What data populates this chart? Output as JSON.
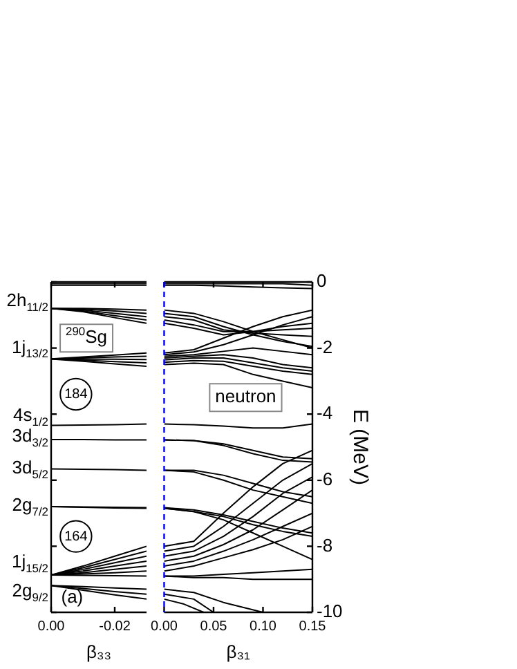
{
  "chart_data": [
    {
      "type": "line",
      "xlabel": "β₃₃",
      "color": "#000000",
      "x": [
        0,
        -0.01,
        -0.02,
        -0.03
      ],
      "xlim": [
        0,
        -0.03
      ],
      "xticks": [
        {
          "value": 0,
          "label": "0.00"
        },
        {
          "value": -0.02,
          "label": "-0.02"
        }
      ],
      "ylim": [
        -10,
        0
      ],
      "yticks": [
        0,
        -2,
        -4,
        -6,
        -8,
        -10
      ],
      "tick_labels": "x",
      "grid": false,
      "legend": false,
      "marker": "none",
      "line_style": "solid",
      "series": [
        {
          "values": [
            -0.05,
            -0.05,
            -0.05,
            -0.05
          ]
        },
        {
          "values": [
            -0.1,
            -0.1,
            -0.1,
            -0.1
          ]
        },
        {
          "values": [
            -0.8,
            -0.8,
            -0.82,
            -0.85
          ]
        },
        {
          "values": [
            -0.8,
            -0.82,
            -0.88,
            -0.95
          ]
        },
        {
          "values": [
            -0.8,
            -0.85,
            -0.95,
            -1.05
          ]
        },
        {
          "values": [
            -0.8,
            -0.88,
            -1.02,
            -1.15
          ]
        },
        {
          "values": [
            -0.8,
            -0.9,
            -1.08,
            -1.25
          ]
        },
        {
          "values": [
            -2.33,
            -2.27,
            -2.21,
            -2.15
          ]
        },
        {
          "values": [
            -2.33,
            -2.3,
            -2.27,
            -2.25
          ]
        },
        {
          "values": [
            -2.33,
            -2.34,
            -2.34,
            -2.35
          ]
        },
        {
          "values": [
            -2.33,
            -2.37,
            -2.41,
            -2.45
          ]
        },
        {
          "values": [
            -2.33,
            -2.4,
            -2.48,
            -2.55
          ]
        },
        {
          "values": [
            -4.34,
            -4.33,
            -4.32,
            -4.3
          ]
        },
        {
          "values": [
            -4.77,
            -4.77,
            -4.78,
            -4.78
          ]
        },
        {
          "values": [
            -5.66,
            -5.67,
            -5.68,
            -5.7
          ]
        },
        {
          "values": [
            -6.8,
            -6.81,
            -6.82,
            -6.83
          ]
        },
        {
          "values": [
            -6.8,
            -6.82,
            -6.84,
            -6.85
          ]
        },
        {
          "values": [
            -8.87,
            -8.6,
            -8.3,
            -8.0
          ]
        },
        {
          "values": [
            -8.87,
            -8.65,
            -8.4,
            -8.15
          ]
        },
        {
          "values": [
            -8.87,
            -8.7,
            -8.5,
            -8.3
          ]
        },
        {
          "values": [
            -8.87,
            -8.75,
            -8.6,
            -8.45
          ]
        },
        {
          "values": [
            -8.87,
            -8.8,
            -8.7,
            -8.6
          ]
        },
        {
          "values": [
            -8.87,
            -8.84,
            -8.8,
            -8.75
          ]
        },
        {
          "values": [
            -8.87,
            -8.88,
            -8.89,
            -8.9
          ]
        },
        {
          "values": [
            -9.19,
            -9.22,
            -9.26,
            -9.3
          ]
        },
        {
          "values": [
            -9.19,
            -9.28,
            -9.37,
            -9.45
          ]
        },
        {
          "values": [
            -9.19,
            -9.33,
            -9.47,
            -9.6
          ]
        }
      ],
      "annotations": [
        "2h$_{11/2}$",
        "1j$_{13/2}$",
        "4s$_{1/2}$",
        "3d$_{3/2}$",
        "3d$_{5/2}$",
        "2g$_{7/2}$",
        "1j$_{15/2}$",
        "2g$_{9/2}$",
        "$^{290}$Sg",
        "184",
        "164",
        "(a)"
      ]
    },
    {
      "type": "line",
      "xlabel": "β₃₁",
      "ylabel": "E (MeV)",
      "color": "#000000",
      "x": [
        0,
        0.03,
        0.06,
        0.09,
        0.12,
        0.15
      ],
      "xlim": [
        0,
        0.15
      ],
      "xticks": [
        {
          "value": 0,
          "label": "0.00"
        },
        {
          "value": 0.05,
          "label": "0.05"
        },
        {
          "value": 0.1,
          "label": "0.10"
        },
        {
          "value": 0.15,
          "label": "0.15"
        }
      ],
      "ylim": [
        -10,
        0
      ],
      "yticks": [
        0,
        -2,
        -4,
        -6,
        -8,
        -10
      ],
      "grid": false,
      "legend": false,
      "marker": "none",
      "line_style": "solid",
      "ref_lines": [
        {
          "axis": "x",
          "value": 0,
          "color": "#0000ff",
          "line_style": "dashed"
        }
      ],
      "series": [
        {
          "values": [
            -0.05,
            -0.05,
            -0.05,
            -0.05,
            -0.05,
            -0.1
          ]
        },
        {
          "values": [
            -0.1,
            -0.1,
            -0.12,
            -0.15,
            -0.18,
            -0.2
          ]
        },
        {
          "values": [
            -0.85,
            -0.95,
            -1.2,
            -1.5,
            -1.75,
            -2.0
          ]
        },
        {
          "values": [
            -0.95,
            -1.05,
            -1.35,
            -1.6,
            -1.8,
            -1.95
          ]
        },
        {
          "values": [
            -1.05,
            -1.15,
            -1.45,
            -1.55,
            -1.6,
            -1.65
          ]
        },
        {
          "values": [
            -1.15,
            -1.3,
            -1.5,
            -1.5,
            -1.45,
            -1.4
          ]
        },
        {
          "values": [
            -1.25,
            -1.4,
            -1.6,
            -1.5,
            -1.35,
            -1.25
          ]
        },
        {
          "values": [
            -2.15,
            -2.05,
            -1.7,
            -1.35,
            -1.05,
            -0.85
          ]
        },
        {
          "values": [
            -2.2,
            -2.12,
            -1.9,
            -1.6,
            -1.3,
            -1.05
          ]
        },
        {
          "values": [
            -2.25,
            -2.2,
            -2.1,
            -2.0,
            -2.1,
            -2.2
          ]
        },
        {
          "values": [
            -2.3,
            -2.25,
            -2.2,
            -2.3,
            -2.5,
            -2.6
          ]
        },
        {
          "values": [
            -2.36,
            -2.3,
            -2.3,
            -2.45,
            -2.6,
            -2.7
          ]
        },
        {
          "values": [
            -2.43,
            -2.38,
            -2.4,
            -2.55,
            -2.7,
            -2.8
          ]
        },
        {
          "values": [
            -2.5,
            -2.46,
            -2.5,
            -2.8,
            -3.0,
            -3.2
          ]
        },
        {
          "values": [
            -4.3,
            -4.32,
            -4.36,
            -4.42,
            -4.42,
            -4.3
          ]
        },
        {
          "values": [
            -4.78,
            -4.8,
            -4.9,
            -5.1,
            -5.3,
            -5.35
          ]
        },
        {
          "values": [
            -4.78,
            -4.8,
            -4.95,
            -5.2,
            -5.4,
            -5.45
          ]
        },
        {
          "values": [
            -5.7,
            -5.7,
            -5.85,
            -6.1,
            -6.35,
            -6.5
          ]
        },
        {
          "values": [
            -5.7,
            -5.75,
            -6.0,
            -6.3,
            -6.5,
            -6.7
          ]
        },
        {
          "values": [
            -6.83,
            -6.9,
            -7.05,
            -7.25,
            -7.45,
            -7.6
          ]
        },
        {
          "values": [
            -6.85,
            -6.95,
            -7.1,
            -7.35,
            -7.55,
            -7.7
          ]
        },
        {
          "values": [
            -6.85,
            -6.95,
            -7.2,
            -7.6,
            -8.0,
            -8.4
          ]
        },
        {
          "values": [
            -8.0,
            -7.85,
            -7.0,
            -6.2,
            -5.5,
            -5.1
          ]
        },
        {
          "values": [
            -8.15,
            -8.0,
            -7.4,
            -6.7,
            -6.0,
            -5.5
          ]
        },
        {
          "values": [
            -8.3,
            -8.15,
            -7.7,
            -7.1,
            -6.4,
            -5.9
          ]
        },
        {
          "values": [
            -8.45,
            -8.3,
            -7.95,
            -7.5,
            -6.9,
            -6.3
          ]
        },
        {
          "values": [
            -8.6,
            -8.45,
            -8.15,
            -7.8,
            -7.4,
            -7.0
          ]
        },
        {
          "values": [
            -8.75,
            -8.6,
            -8.35,
            -8.1,
            -7.8,
            -7.4
          ]
        },
        {
          "values": [
            -8.9,
            -8.9,
            -8.85,
            -8.8,
            -8.75,
            -8.7
          ]
        },
        {
          "values": [
            -8.9,
            -8.95,
            -8.95,
            -9.0,
            -9.0,
            -9.0
          ]
        },
        {
          "x": [
            0,
            0.03,
            0.06,
            0.1
          ],
          "values": [
            -9.3,
            -9.4,
            -9.7,
            -10
          ]
        },
        {
          "x": [
            0,
            0.03,
            0.05
          ],
          "values": [
            -9.45,
            -9.6,
            -10
          ]
        },
        {
          "x": [
            0,
            0.02,
            0.04
          ],
          "values": [
            -9.6,
            -9.75,
            -10
          ]
        }
      ],
      "annotations": [
        "neutron"
      ]
    }
  ]
}
